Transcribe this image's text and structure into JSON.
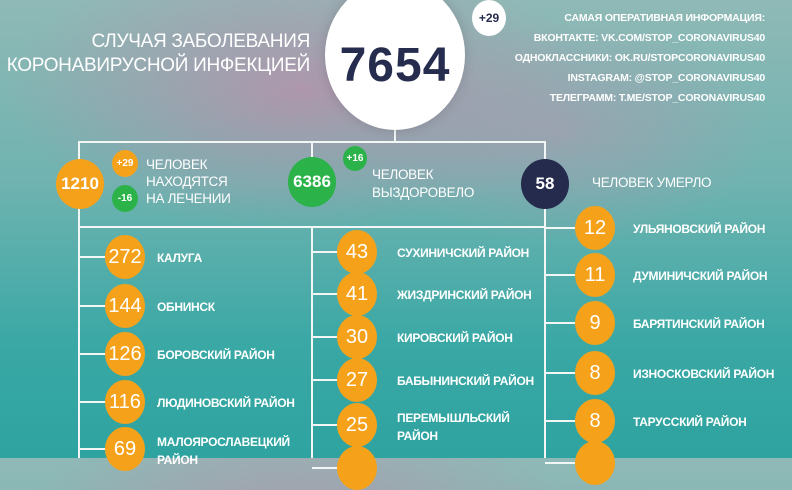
{
  "header": {
    "title_line1": "СЛУЧАЯ ЗАБОЛЕВАНИЯ",
    "title_line2": "КОРОНАВИРУСНОЙ ИНФЕКЦИЕЙ",
    "total": "7654",
    "total_delta": "+29"
  },
  "info": [
    "САМАЯ ОПЕРАТИВНАЯ ИНФОРМАЦИЯ:",
    "ВКОНТАКТЕ: VK.COM/STOP_CORONAVIRUS40",
    "ОДНОКЛАССНИКИ: OK.RU/STOPCORONAVIRUS40",
    "INSTAGRAM: @STOP_CORONAVIRUS40",
    "ТЕЛЕГРАММ: T.ME/STOP_CORONAVIRUS40"
  ],
  "stats": {
    "treatment": {
      "value": "1210",
      "plus": "+29",
      "minus": "-16",
      "label": [
        "ЧЕЛОВЕК",
        "НАХОДЯТСЯ",
        "НА ЛЕЧЕНИИ"
      ]
    },
    "recovered": {
      "value": "6386",
      "plus": "+16",
      "label": [
        "ЧЕЛОВЕК",
        "ВЫЗДОРОВЕЛО"
      ]
    },
    "died": {
      "value": "58",
      "label": "ЧЕЛОВЕК УМЕРЛО"
    }
  },
  "colors": {
    "orange": "#f5a21a",
    "green": "#2bb34a",
    "navy": "#252b4d"
  },
  "districts": {
    "col1": [
      {
        "value": "272",
        "name": "КАЛУГА"
      },
      {
        "value": "144",
        "name": "ОБНИНСК"
      },
      {
        "value": "126",
        "name": "БОРОВСКИЙ РАЙОН"
      },
      {
        "value": "116",
        "name": "ЛЮДИНОВСКИЙ РАЙОН"
      },
      {
        "value": "69",
        "name": "МАЛОЯРОСЛАВЕЦКИЙ РАЙОН"
      }
    ],
    "col2": [
      {
        "value": "43",
        "name": "СУХИНИЧСКИЙ РАЙОН"
      },
      {
        "value": "41",
        "name": "ЖИЗДРИНСКИЙ РАЙОН"
      },
      {
        "value": "30",
        "name": "КИРОВСКИЙ РАЙОН"
      },
      {
        "value": "27",
        "name": "БАБЫНИНСКИЙ РАЙОН"
      },
      {
        "value": "25",
        "name": "ПЕРЕМЫШЛЬСКИЙ РАЙОН"
      }
    ],
    "col3": [
      {
        "value": "12",
        "name": "УЛЬЯНОВСКИЙ РАЙОН"
      },
      {
        "value": "11",
        "name": "ДУМИНИЧСКИЙ РАЙОН"
      },
      {
        "value": "9",
        "name": "БАРЯТИНСКИЙ РАЙОН"
      },
      {
        "value": "8",
        "name": "ИЗНОСКОВСКИЙ РАЙОН"
      },
      {
        "value": "8",
        "name": "ТАРУССКИЙ РАЙОН"
      }
    ]
  }
}
